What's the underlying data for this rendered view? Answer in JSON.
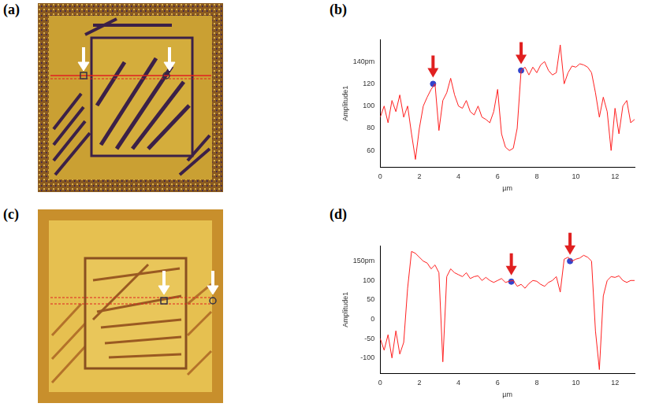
{
  "images": [
    {
      "label": "(a)"
    },
    {
      "label": "(c)"
    }
  ],
  "chart_data": [
    {
      "type": "line",
      "panel_label": "(b)",
      "y_label": "Amplitude1",
      "x_label": "µm",
      "color": "#ff2020",
      "x": [
        0,
        0.2,
        0.4,
        0.6,
        0.8,
        1,
        1.2,
        1.4,
        1.6,
        1.8,
        2,
        2.2,
        2.4,
        2.6,
        2.8,
        3,
        3.2,
        3.4,
        3.6,
        3.8,
        4,
        4.2,
        4.4,
        4.6,
        4.8,
        5,
        5.2,
        5.4,
        5.6,
        5.8,
        6,
        6.2,
        6.4,
        6.6,
        6.8,
        7,
        7.2,
        7.4,
        7.6,
        7.8,
        8,
        8.2,
        8.4,
        8.6,
        8.8,
        9,
        9.2,
        9.4,
        9.6,
        9.8,
        10,
        10.2,
        10.4,
        10.6,
        10.8,
        11,
        11.2,
        11.4,
        11.6,
        11.8,
        12,
        12.2,
        12.4,
        12.6,
        12.8,
        13
      ],
      "values": [
        90,
        100,
        85,
        105,
        95,
        110,
        90,
        100,
        75,
        52,
        80,
        100,
        108,
        115,
        120,
        78,
        105,
        112,
        125,
        110,
        100,
        98,
        105,
        95,
        92,
        100,
        90,
        88,
        85,
        95,
        115,
        75,
        63,
        60,
        62,
        80,
        132,
        135,
        128,
        135,
        130,
        137,
        140,
        132,
        128,
        130,
        155,
        120,
        130,
        136,
        135,
        138,
        137,
        135,
        130,
        112,
        90,
        108,
        95,
        60,
        98,
        75,
        100,
        105,
        85,
        88
      ],
      "markers": {
        "x": [
          2.7,
          7.2
        ],
        "y": [
          120,
          132
        ],
        "color": "#3344cc"
      },
      "xlim": [
        0,
        13
      ],
      "xticks": [
        0,
        2,
        4,
        6,
        8,
        10,
        12
      ],
      "ylim": [
        45,
        160
      ],
      "yticks": [
        60,
        80,
        100,
        120,
        {
          "value": 140,
          "label": "140pm"
        }
      ],
      "grid": false
    },
    {
      "type": "line",
      "panel_label": "(d)",
      "y_label": "Amplitude1",
      "x_label": "µm",
      "color": "#ff2020",
      "x": [
        0,
        0.2,
        0.4,
        0.6,
        0.8,
        1,
        1.2,
        1.4,
        1.6,
        1.8,
        2,
        2.2,
        2.4,
        2.6,
        2.8,
        3,
        3.2,
        3.4,
        3.6,
        3.8,
        4,
        4.2,
        4.4,
        4.6,
        4.8,
        5,
        5.2,
        5.4,
        5.6,
        5.8,
        6,
        6.2,
        6.4,
        6.6,
        6.8,
        7,
        7.2,
        7.4,
        7.6,
        7.8,
        8,
        8.2,
        8.4,
        8.6,
        8.8,
        9,
        9.2,
        9.4,
        9.6,
        9.8,
        10,
        10.2,
        10.4,
        10.6,
        10.8,
        11,
        11.2,
        11.4,
        11.6,
        11.8,
        12,
        12.2,
        12.4,
        12.6,
        12.8,
        13
      ],
      "values": [
        -50,
        -80,
        -40,
        -100,
        -30,
        -90,
        -60,
        80,
        175,
        170,
        160,
        150,
        145,
        130,
        140,
        120,
        -110,
        110,
        130,
        120,
        115,
        110,
        120,
        105,
        110,
        112,
        100,
        108,
        100,
        95,
        100,
        105,
        95,
        98,
        100,
        85,
        90,
        80,
        92,
        100,
        98,
        90,
        85,
        95,
        100,
        110,
        70,
        155,
        160,
        150,
        155,
        158,
        165,
        160,
        150,
        -30,
        -130,
        60,
        100,
        110,
        108,
        112,
        100,
        95,
        100,
        100
      ],
      "markers": {
        "x": [
          6.7,
          9.7
        ],
        "y": [
          97,
          150
        ],
        "color": "#3344cc"
      },
      "xlim": [
        0,
        13
      ],
      "xticks": [
        0,
        2,
        4,
        6,
        8,
        10,
        12
      ],
      "ylim": [
        -140,
        190
      ],
      "yticks": [
        -100,
        -50,
        0,
        50,
        100,
        {
          "value": 150,
          "label": "150pm"
        }
      ],
      "grid": false
    }
  ]
}
